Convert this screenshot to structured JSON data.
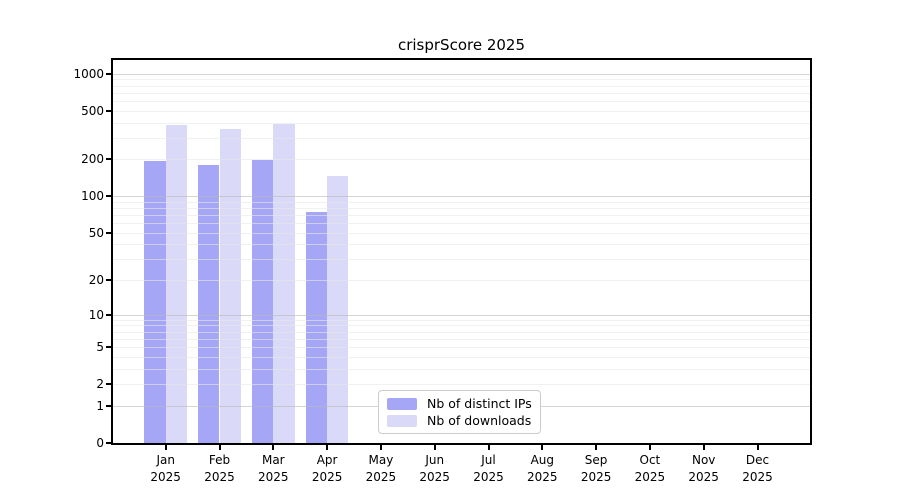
{
  "title": "crisprScore 2025",
  "chart_data": {
    "type": "bar",
    "title": "crisprScore 2025",
    "scale": "log1p",
    "grid": true,
    "categories": [
      "Jan",
      "Feb",
      "Mar",
      "Apr",
      "May",
      "Jun",
      "Jul",
      "Aug",
      "Sep",
      "Oct",
      "Nov",
      "Dec"
    ],
    "year_label": "2025",
    "series": [
      {
        "name": "Nb of distinct IPs",
        "color": "#a6a6f7",
        "values": [
          194,
          180,
          198,
          74,
          0,
          0,
          0,
          0,
          0,
          0,
          0,
          0
        ]
      },
      {
        "name": "Nb of downloads",
        "color": "#dadaf8",
        "values": [
          385,
          353,
          394,
          148,
          0,
          0,
          0,
          0,
          0,
          0,
          0,
          0
        ]
      }
    ],
    "yticks": [
      0,
      1,
      2,
      5,
      10,
      20,
      50,
      100,
      200,
      500,
      1000
    ],
    "ylim": [
      0,
      1310
    ],
    "xlabel": "",
    "ylabel": "",
    "legend_position": "inside-bottom-center"
  },
  "colors": {
    "grid_major": "#b9b9b9",
    "grid_minor": "#e7e7e7",
    "axis": "#000000",
    "background": "#ffffff",
    "legend_border": "#cccccc"
  }
}
